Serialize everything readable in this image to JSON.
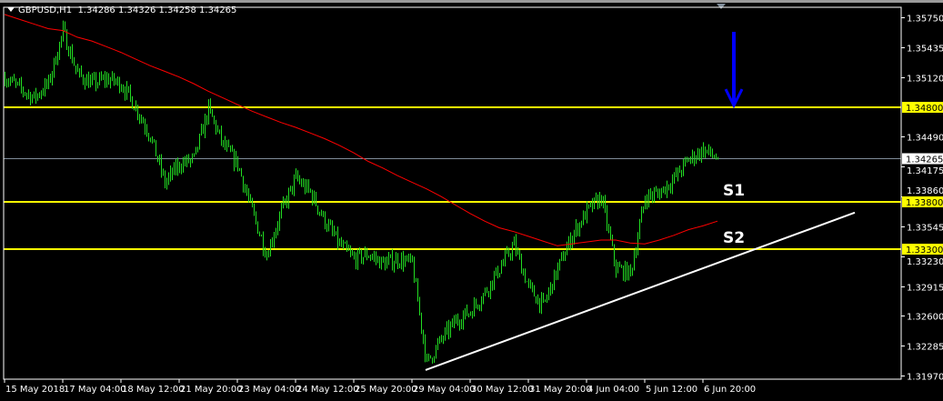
{
  "header": {
    "symbol": "GBPUSD,H1",
    "ohlc": "1.34286 1.34326 1.34258 1.34265"
  },
  "colors": {
    "bars": "#22dd22",
    "ma": "#ff0000",
    "levels": "#ffff00",
    "trendline": "#ffffff",
    "arrow": "#0000ff",
    "current_price": "#7f8c99"
  },
  "chart_data": {
    "type": "line",
    "title": "GBPUSD,H1",
    "ylim": [
      1.3187,
      1.3586
    ],
    "y_ticks": [
      "1.35750",
      "1.35435",
      "1.35120",
      "1.34490",
      "1.34175",
      "1.33860",
      "1.33545",
      "1.33230",
      "1.32915",
      "1.32600",
      "1.32285",
      "1.31970"
    ],
    "x_ticks": [
      "15 May 2018",
      "17 May 04:00",
      "18 May 12:00",
      "21 May 20:00",
      "23 May 04:00",
      "24 May 12:00",
      "25 May 20:00",
      "29 May 04:00",
      "30 May 12:00",
      "31 May 20:00",
      "4 Jun 04:00",
      "5 Jun 12:00",
      "6 Jun 20:00"
    ],
    "series": [
      {
        "type": "ohlc-bars",
        "close_samples": [
          1.3512,
          1.35,
          1.349,
          1.3505,
          1.356,
          1.3515,
          1.3505,
          1.351,
          1.3505,
          1.348,
          1.345,
          1.34,
          1.342,
          1.3425,
          1.3478,
          1.344,
          1.342,
          1.337,
          1.3325,
          1.337,
          1.3405,
          1.339,
          1.336,
          1.3335,
          1.332,
          1.3325,
          1.3315,
          1.332,
          1.3315,
          1.321,
          1.3235,
          1.3255,
          1.3265,
          1.3285,
          1.331,
          1.3335,
          1.329,
          1.327,
          1.331,
          1.3345,
          1.337,
          1.3385,
          1.331,
          1.3305,
          1.3385,
          1.339,
          1.3405,
          1.3425,
          1.3435,
          1.34265
        ]
      },
      {
        "type": "moving-average",
        "samples": [
          1.3578,
          1.3573,
          1.3568,
          1.3563,
          1.3561,
          1.3554,
          1.355,
          1.3544,
          1.3538,
          1.3531,
          1.3524,
          1.3518,
          1.3512,
          1.3505,
          1.3497,
          1.349,
          1.3483,
          1.3476,
          1.347,
          1.3464,
          1.3459,
          1.3453,
          1.3447,
          1.344,
          1.3432,
          1.3423,
          1.3416,
          1.3408,
          1.3401,
          1.3394,
          1.3386,
          1.3377,
          1.3368,
          1.336,
          1.3353,
          1.3349,
          1.3344,
          1.3339,
          1.3334,
          1.3336,
          1.3338,
          1.334,
          1.334,
          1.3337,
          1.3336,
          1.334,
          1.3345,
          1.3351,
          1.3355,
          1.336
        ]
      }
    ],
    "horizontal_levels": [
      {
        "price": 1.348,
        "label": "1.34800"
      },
      {
        "price": 1.338,
        "label": "1.33800",
        "annotation": "S1"
      },
      {
        "price": 1.333,
        "label": "1.33300",
        "annotation": "S2"
      }
    ],
    "current_price": {
      "price": 1.34265,
      "label": "1.34265"
    },
    "trendline": {
      "from_price": 1.3203,
      "to_price": 1.3369
    },
    "arrow": {
      "direction": "down",
      "target_price": 1.348
    }
  }
}
